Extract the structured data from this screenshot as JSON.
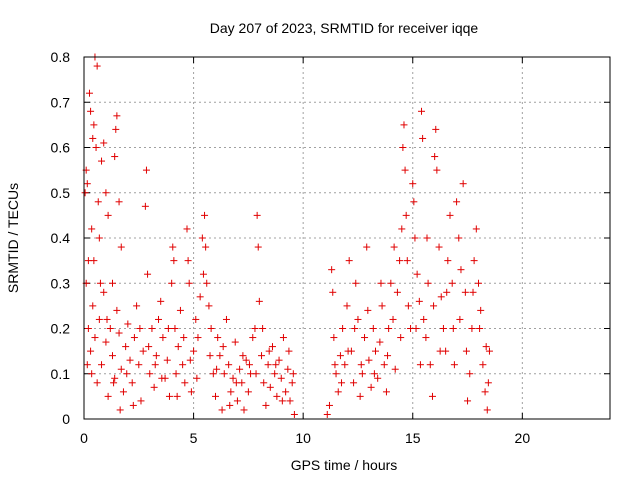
{
  "chart_data": {
    "type": "scatter",
    "title": "Day 207 of 2023, SRMTID for receiver iqqe",
    "xlabel": "GPS time / hours",
    "ylabel": "SRMTID / TECUs",
    "xlim": [
      0,
      24
    ],
    "ylim": [
      0,
      0.8
    ],
    "xticks": [
      0,
      5,
      10,
      15,
      20
    ],
    "yticks": [
      0,
      0.1,
      0.2,
      0.3,
      0.4,
      0.5,
      0.6,
      0.7,
      0.8
    ],
    "xtick_labels": [
      "0",
      "5",
      "10",
      "15",
      "20"
    ],
    "ytick_labels": [
      "0",
      "0.1",
      "0.2",
      "0.3",
      "0.4",
      "0.5",
      "0.6",
      "0.7",
      "0.8"
    ],
    "grid": true,
    "marker": "+",
    "color": "#e00000",
    "series": [
      {
        "name": "SRMTID",
        "points": [
          [
            0.05,
            0.5
          ],
          [
            0.1,
            0.55
          ],
          [
            0.15,
            0.52
          ],
          [
            0.2,
            0.35
          ],
          [
            0.25,
            0.72
          ],
          [
            0.3,
            0.68
          ],
          [
            0.35,
            0.42
          ],
          [
            0.4,
            0.62
          ],
          [
            0.45,
            0.65
          ],
          [
            0.5,
            0.8
          ],
          [
            0.55,
            0.6
          ],
          [
            0.6,
            0.78
          ],
          [
            0.65,
            0.48
          ],
          [
            0.7,
            0.4
          ],
          [
            0.8,
            0.57
          ],
          [
            0.9,
            0.61
          ],
          [
            1.0,
            0.5
          ],
          [
            1.1,
            0.45
          ],
          [
            1.3,
            0.3
          ],
          [
            1.4,
            0.58
          ],
          [
            1.45,
            0.64
          ],
          [
            1.5,
            0.67
          ],
          [
            1.6,
            0.48
          ],
          [
            1.7,
            0.38
          ],
          [
            0.1,
            0.3
          ],
          [
            0.2,
            0.2
          ],
          [
            0.3,
            0.15
          ],
          [
            0.35,
            0.1
          ],
          [
            0.4,
            0.25
          ],
          [
            0.5,
            0.18
          ],
          [
            0.6,
            0.08
          ],
          [
            0.7,
            0.22
          ],
          [
            0.8,
            0.12
          ],
          [
            0.9,
            0.28
          ],
          [
            1.0,
            0.17
          ],
          [
            1.1,
            0.05
          ],
          [
            1.2,
            0.2
          ],
          [
            1.3,
            0.14
          ],
          [
            1.4,
            0.09
          ],
          [
            1.5,
            0.24
          ],
          [
            1.6,
            0.19
          ],
          [
            1.7,
            0.11
          ],
          [
            1.8,
            0.06
          ],
          [
            1.9,
            0.16
          ],
          [
            2.0,
            0.21
          ],
          [
            2.1,
            0.13
          ],
          [
            2.2,
            0.08
          ],
          [
            2.3,
            0.18
          ],
          [
            2.4,
            0.25
          ],
          [
            2.5,
            0.12
          ],
          [
            2.6,
            0.04
          ],
          [
            2.7,
            0.15
          ],
          [
            2.8,
            0.47
          ],
          [
            2.85,
            0.55
          ],
          [
            2.9,
            0.32
          ],
          [
            3.0,
            0.1
          ],
          [
            3.1,
            0.2
          ],
          [
            3.2,
            0.07
          ],
          [
            3.3,
            0.14
          ],
          [
            3.4,
            0.22
          ],
          [
            3.5,
            0.26
          ],
          [
            3.6,
            0.18
          ],
          [
            3.7,
            0.09
          ],
          [
            3.8,
            0.13
          ],
          [
            3.9,
            0.05
          ],
          [
            4.0,
            0.3
          ],
          [
            4.05,
            0.38
          ],
          [
            4.1,
            0.35
          ],
          [
            4.15,
            0.2
          ],
          [
            4.2,
            0.1
          ],
          [
            4.3,
            0.16
          ],
          [
            4.4,
            0.24
          ],
          [
            4.5,
            0.12
          ],
          [
            4.6,
            0.08
          ],
          [
            4.7,
            0.42
          ],
          [
            4.75,
            0.35
          ],
          [
            4.8,
            0.3
          ],
          [
            4.9,
            0.06
          ],
          [
            5.0,
            0.15
          ],
          [
            5.1,
            0.22
          ],
          [
            5.2,
            0.18
          ],
          [
            5.3,
            0.27
          ],
          [
            5.4,
            0.4
          ],
          [
            5.5,
            0.45
          ],
          [
            5.55,
            0.38
          ],
          [
            5.6,
            0.3
          ],
          [
            5.7,
            0.25
          ],
          [
            5.8,
            0.2
          ],
          [
            5.9,
            0.1
          ],
          [
            6.0,
            0.05
          ],
          [
            6.1,
            0.18
          ],
          [
            6.2,
            0.14
          ],
          [
            6.3,
            0.02
          ],
          [
            6.4,
            0.1
          ],
          [
            6.5,
            0.22
          ],
          [
            6.6,
            0.12
          ],
          [
            6.7,
            0.06
          ],
          [
            6.8,
            0.09
          ],
          [
            6.9,
            0.17
          ],
          [
            7.0,
            0.04
          ],
          [
            7.1,
            0.11
          ],
          [
            7.2,
            0.08
          ],
          [
            7.3,
            0.02
          ],
          [
            7.4,
            0.13
          ],
          [
            7.5,
            0.06
          ],
          [
            7.6,
            0.1
          ],
          [
            7.7,
            0.18
          ],
          [
            7.8,
            0.2
          ],
          [
            7.9,
            0.45
          ],
          [
            7.95,
            0.38
          ],
          [
            8.0,
            0.26
          ],
          [
            8.1,
            0.14
          ],
          [
            8.2,
            0.08
          ],
          [
            8.3,
            0.03
          ],
          [
            8.4,
            0.12
          ],
          [
            8.5,
            0.07
          ],
          [
            8.6,
            0.16
          ],
          [
            8.7,
            0.1
          ],
          [
            8.8,
            0.05
          ],
          [
            8.9,
            0.13
          ],
          [
            9.0,
            0.09
          ],
          [
            9.1,
            0.18
          ],
          [
            9.2,
            0.06
          ],
          [
            9.3,
            0.11
          ],
          [
            9.4,
            0.04
          ],
          [
            9.5,
            0.08
          ],
          [
            9.6,
            0.01
          ],
          [
            0.15,
            0.12
          ],
          [
            0.45,
            0.35
          ],
          [
            0.75,
            0.3
          ],
          [
            1.05,
            0.22
          ],
          [
            1.35,
            0.08
          ],
          [
            1.65,
            0.02
          ],
          [
            1.95,
            0.1
          ],
          [
            2.25,
            0.03
          ],
          [
            2.55,
            0.2
          ],
          [
            2.95,
            0.16
          ],
          [
            3.25,
            0.12
          ],
          [
            3.55,
            0.09
          ],
          [
            3.85,
            0.2
          ],
          [
            4.25,
            0.05
          ],
          [
            4.55,
            0.18
          ],
          [
            4.85,
            0.13
          ],
          [
            5.15,
            0.09
          ],
          [
            5.45,
            0.32
          ],
          [
            5.75,
            0.14
          ],
          [
            6.05,
            0.11
          ],
          [
            6.35,
            0.16
          ],
          [
            6.65,
            0.03
          ],
          [
            6.95,
            0.08
          ],
          [
            7.25,
            0.14
          ],
          [
            7.55,
            0.12
          ],
          [
            7.85,
            0.1
          ],
          [
            8.15,
            0.2
          ],
          [
            8.45,
            0.15
          ],
          [
            8.75,
            0.12
          ],
          [
            9.05,
            0.04
          ],
          [
            9.35,
            0.15
          ],
          [
            9.55,
            0.1
          ],
          [
            11.1,
            0.01
          ],
          [
            11.2,
            0.03
          ],
          [
            11.3,
            0.33
          ],
          [
            11.35,
            0.28
          ],
          [
            11.4,
            0.18
          ],
          [
            11.5,
            0.1
          ],
          [
            11.6,
            0.06
          ],
          [
            11.7,
            0.14
          ],
          [
            11.8,
            0.2
          ],
          [
            11.9,
            0.12
          ],
          [
            12.0,
            0.25
          ],
          [
            12.1,
            0.35
          ],
          [
            12.2,
            0.15
          ],
          [
            12.3,
            0.08
          ],
          [
            12.4,
            0.3
          ],
          [
            12.5,
            0.22
          ],
          [
            12.6,
            0.05
          ],
          [
            12.7,
            0.1
          ],
          [
            12.8,
            0.18
          ],
          [
            12.9,
            0.38
          ],
          [
            13.0,
            0.13
          ],
          [
            13.1,
            0.07
          ],
          [
            13.2,
            0.2
          ],
          [
            13.3,
            0.15
          ],
          [
            13.4,
            0.09
          ],
          [
            13.5,
            0.17
          ],
          [
            13.6,
            0.25
          ],
          [
            13.7,
            0.12
          ],
          [
            13.8,
            0.06
          ],
          [
            13.9,
            0.2
          ],
          [
            14.0,
            0.3
          ],
          [
            14.1,
            0.22
          ],
          [
            14.2,
            0.11
          ],
          [
            14.3,
            0.28
          ],
          [
            14.4,
            0.35
          ],
          [
            14.5,
            0.42
          ],
          [
            14.55,
            0.6
          ],
          [
            14.6,
            0.65
          ],
          [
            14.65,
            0.55
          ],
          [
            14.7,
            0.45
          ],
          [
            14.8,
            0.25
          ],
          [
            14.9,
            0.2
          ],
          [
            15.0,
            0.52
          ],
          [
            15.05,
            0.48
          ],
          [
            15.1,
            0.4
          ],
          [
            15.2,
            0.32
          ],
          [
            15.3,
            0.26
          ],
          [
            15.4,
            0.68
          ],
          [
            15.45,
            0.62
          ],
          [
            15.5,
            0.22
          ],
          [
            15.6,
            0.18
          ],
          [
            15.7,
            0.3
          ],
          [
            15.8,
            0.12
          ],
          [
            15.9,
            0.05
          ],
          [
            16.0,
            0.58
          ],
          [
            16.05,
            0.64
          ],
          [
            16.1,
            0.55
          ],
          [
            16.2,
            0.38
          ],
          [
            16.3,
            0.27
          ],
          [
            16.4,
            0.2
          ],
          [
            16.5,
            0.15
          ],
          [
            16.6,
            0.35
          ],
          [
            16.7,
            0.45
          ],
          [
            16.8,
            0.3
          ],
          [
            16.9,
            0.12
          ],
          [
            17.0,
            0.48
          ],
          [
            17.1,
            0.4
          ],
          [
            17.2,
            0.33
          ],
          [
            17.3,
            0.52
          ],
          [
            17.4,
            0.28
          ],
          [
            17.5,
            0.04
          ],
          [
            17.6,
            0.1
          ],
          [
            17.7,
            0.2
          ],
          [
            17.8,
            0.35
          ],
          [
            17.9,
            0.42
          ],
          [
            18.0,
            0.3
          ],
          [
            18.1,
            0.24
          ],
          [
            18.2,
            0.12
          ],
          [
            18.3,
            0.06
          ],
          [
            18.4,
            0.02
          ],
          [
            18.5,
            0.15
          ],
          [
            11.45,
            0.12
          ],
          [
            11.75,
            0.08
          ],
          [
            12.05,
            0.15
          ],
          [
            12.35,
            0.2
          ],
          [
            12.65,
            0.12
          ],
          [
            12.95,
            0.24
          ],
          [
            13.25,
            0.1
          ],
          [
            13.55,
            0.3
          ],
          [
            13.85,
            0.14
          ],
          [
            14.15,
            0.38
          ],
          [
            14.45,
            0.18
          ],
          [
            14.75,
            0.35
          ],
          [
            15.15,
            0.2
          ],
          [
            15.35,
            0.12
          ],
          [
            15.65,
            0.4
          ],
          [
            15.95,
            0.25
          ],
          [
            16.25,
            0.15
          ],
          [
            16.55,
            0.28
          ],
          [
            16.85,
            0.2
          ],
          [
            17.15,
            0.22
          ],
          [
            17.45,
            0.15
          ],
          [
            17.75,
            0.28
          ],
          [
            18.05,
            0.2
          ],
          [
            18.35,
            0.16
          ],
          [
            18.45,
            0.08
          ]
        ]
      }
    ]
  }
}
